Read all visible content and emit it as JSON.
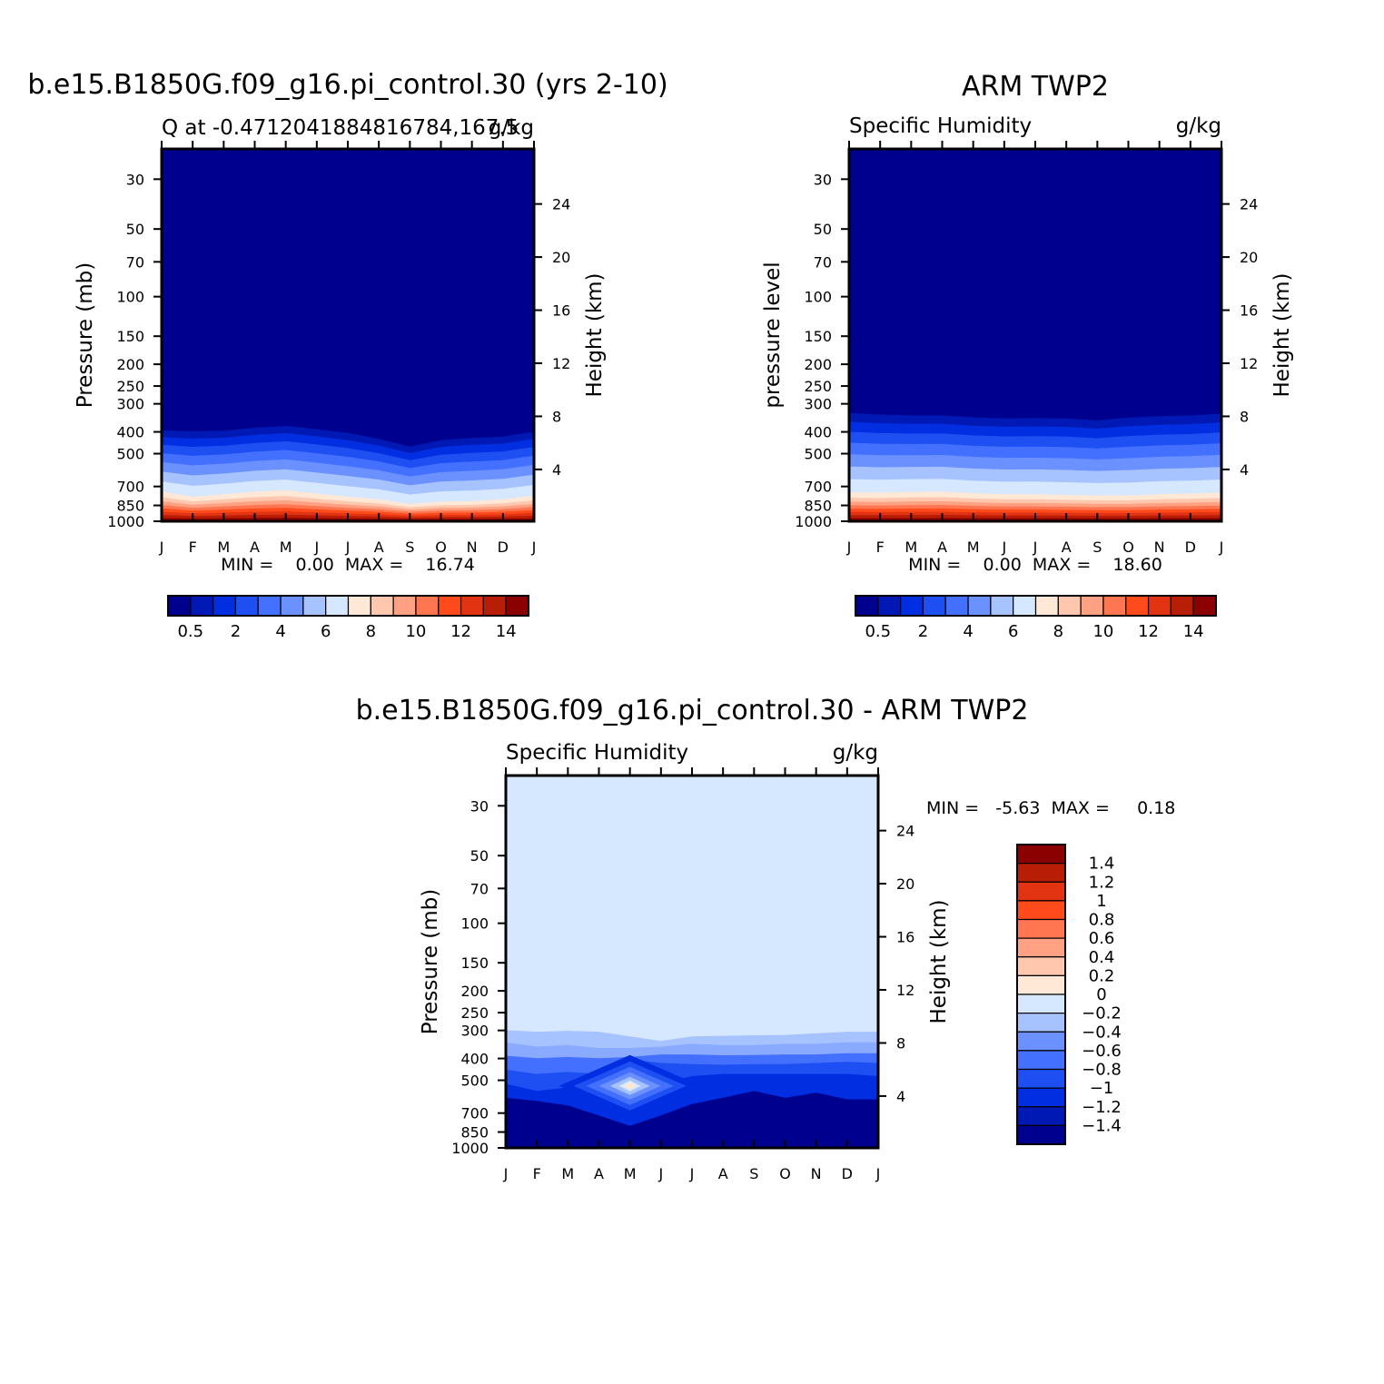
{
  "chart_data": [
    {
      "type": "heatmap",
      "title": "b.e15.B1850G.f09_g16.pi_control.30 (yrs 2-10)",
      "subtitle_left": "Q at -0.4712041884816784,167.5",
      "subtitle_right": "g/kg",
      "ylabel": "Pressure (mb)",
      "ylabel_right": "Height (km)",
      "x_ticks": [
        "J",
        "F",
        "M",
        "A",
        "M",
        "J",
        "J",
        "A",
        "S",
        "O",
        "N",
        "D",
        "J"
      ],
      "y_ticks": [
        "30",
        "50",
        "70",
        "100",
        "150",
        "200",
        "250",
        "300",
        "400",
        "500",
        "700",
        "850",
        "1000"
      ],
      "y_tick_values": [
        30,
        50,
        70,
        100,
        150,
        200,
        250,
        300,
        400,
        500,
        700,
        850,
        1000
      ],
      "y_right_ticks": [
        "24",
        "20",
        "16",
        "12",
        "8",
        "4"
      ],
      "y_right_tick_values": [
        24,
        20,
        16,
        12,
        8,
        4
      ],
      "minmax_label": "MIN =    0.00  MAX =    16.74",
      "min": 0.0,
      "max": 16.74,
      "colorbar": {
        "orientation": "horizontal",
        "labels": [
          "0.5",
          "2",
          "4",
          "6",
          "8",
          "10",
          "12",
          "14"
        ],
        "colors": [
          "#00008e",
          "#0019b4",
          "#002ee0",
          "#1d4ff2",
          "#4470ff",
          "#6b90ff",
          "#a6c3ff",
          "#d6e8ff",
          "#ffe8d6",
          "#ffc8ae",
          "#ffa182",
          "#ff7650",
          "#ff4a1c",
          "#e23412",
          "#b81d06",
          "#8b0000"
        ]
      },
      "profile": {
        "mid_pressure_mb": [
          740,
          780,
          760,
          740,
          730,
          755,
          780,
          800,
          840,
          820,
          815,
          800,
          770
        ],
        "top_pressure_mb": [
          375,
          378,
          376,
          365,
          358,
          370,
          385,
          410,
          445,
          415,
          405,
          400,
          380
        ]
      }
    },
    {
      "type": "heatmap",
      "title": "ARM TWP2",
      "subtitle_left": "Specific Humidity",
      "subtitle_right": "g/kg",
      "ylabel": "pressure level",
      "ylabel_right": "Height (km)",
      "x_ticks": [
        "J",
        "F",
        "M",
        "A",
        "M",
        "J",
        "J",
        "A",
        "S",
        "O",
        "N",
        "D",
        "J"
      ],
      "y_ticks": [
        "30",
        "50",
        "70",
        "100",
        "150",
        "200",
        "250",
        "300",
        "400",
        "500",
        "700",
        "850",
        "1000"
      ],
      "y_tick_values": [
        30,
        50,
        70,
        100,
        150,
        200,
        250,
        300,
        400,
        500,
        700,
        850,
        1000
      ],
      "y_right_ticks": [
        "24",
        "20",
        "16",
        "12",
        "8",
        "4"
      ],
      "y_right_tick_values": [
        24,
        20,
        16,
        12,
        8,
        4
      ],
      "minmax_label": "MIN =    0.00  MAX =    18.60",
      "min": 0.0,
      "max": 18.6,
      "colorbar": {
        "orientation": "horizontal",
        "labels": [
          "0.5",
          "2",
          "4",
          "6",
          "8",
          "10",
          "12",
          "14"
        ],
        "colors": [
          "#00008e",
          "#0019b4",
          "#002ee0",
          "#1d4ff2",
          "#4470ff",
          "#6b90ff",
          "#a6c3ff",
          "#d6e8ff",
          "#ffe8d6",
          "#ffc8ae",
          "#ffa182",
          "#ff7650",
          "#ff4a1c",
          "#e23412",
          "#b81d06",
          "#8b0000"
        ]
      },
      "profile": {
        "mid_pressure_mb": [
          745,
          748,
          742,
          740,
          752,
          760,
          760,
          765,
          770,
          770,
          760,
          755,
          748
        ],
        "top_pressure_mb": [
          310,
          315,
          318,
          318,
          325,
          328,
          327,
          328,
          335,
          325,
          320,
          318,
          312
        ]
      }
    },
    {
      "type": "heatmap",
      "title": "b.e15.B1850G.f09_g16.pi_control.30 - ARM TWP2",
      "subtitle_left": "Specific Humidity",
      "subtitle_right": "g/kg",
      "ylabel": "Pressure (mb)",
      "ylabel_right": "Height (km)",
      "x_ticks": [
        "J",
        "F",
        "M",
        "A",
        "M",
        "J",
        "J",
        "A",
        "S",
        "O",
        "N",
        "D",
        "J"
      ],
      "y_ticks": [
        "30",
        "50",
        "70",
        "100",
        "150",
        "200",
        "250",
        "300",
        "400",
        "500",
        "700",
        "850",
        "1000"
      ],
      "y_tick_values": [
        30,
        50,
        70,
        100,
        150,
        200,
        250,
        300,
        400,
        500,
        700,
        850,
        1000
      ],
      "y_right_ticks": [
        "24",
        "20",
        "16",
        "12",
        "8",
        "4"
      ],
      "y_right_tick_values": [
        24,
        20,
        16,
        12,
        8,
        4
      ],
      "minmax_label": "MIN =   -5.63  MAX =     0.18",
      "min": -5.63,
      "max": 0.18,
      "colorbar": {
        "orientation": "vertical",
        "labels": [
          "1.4",
          "1.2",
          "1",
          "0.8",
          "0.6",
          "0.4",
          "0.2",
          "0",
          "-0.2",
          "-0.4",
          "-0.6",
          "-0.8",
          "-1",
          "-1.2",
          "-1.4"
        ],
        "colors": [
          "#8b0000",
          "#b81d06",
          "#e23412",
          "#ff4a1c",
          "#ff7650",
          "#ffa182",
          "#ffc8ae",
          "#ffe8d6",
          "#d6e8ff",
          "#a6c3ff",
          "#6b90ff",
          "#4470ff",
          "#1d4ff2",
          "#002ee0",
          "#0019b4",
          "#00008e"
        ]
      },
      "diff_boundaries_mb": [
        [
          300,
          305,
          302,
          305,
          320,
          335,
          320,
          318,
          316,
          315,
          310,
          305,
          305
        ],
        [
          340,
          355,
          350,
          360,
          360,
          355,
          345,
          350,
          350,
          345,
          345,
          340,
          340
        ],
        [
          390,
          400,
          395,
          400,
          395,
          385,
          385,
          388,
          387,
          385,
          385,
          380,
          380
        ],
        [
          450,
          470,
          460,
          470,
          405,
          420,
          425,
          428,
          425,
          425,
          420,
          415,
          420
        ],
        [
          520,
          560,
          540,
          540,
          480,
          520,
          480,
          470,
          470,
          470,
          470,
          470,
          480
        ],
        [
          600,
          620,
          650,
          720,
          800,
          720,
          640,
          600,
          560,
          600,
          570,
          610,
          610
        ]
      ],
      "positive_core": {
        "month_index": 4,
        "pressure_mb": 530
      }
    }
  ]
}
